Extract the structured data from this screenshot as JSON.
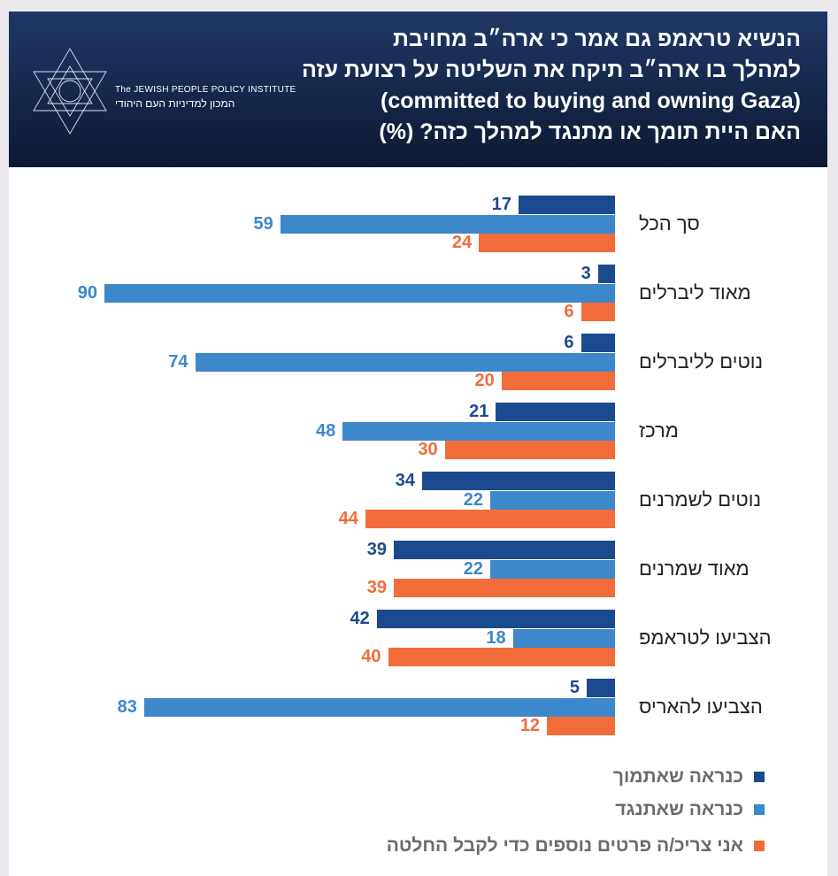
{
  "header": {
    "title_lines": [
      "הנשיא טראמפ גם אמר כי ארה״ב מחויבת",
      "למהלך בו ארה״ב תיקח את השליטה על רצועת עזה",
      "(committed to buying and owning Gaza)",
      "האם היית תומך או מתנגד למהלך כזה? (%)"
    ],
    "logo_en": "The JEWISH PEOPLE POLICY INSTITUTE",
    "logo_he": "המכון למדיניות העם היהודי"
  },
  "chart_data": {
    "type": "bar",
    "orientation": "horizontal",
    "unit": "%",
    "categories": [
      "סך הכל",
      "מאוד ליברלים",
      "נוטים לליברלים",
      "מרכז",
      "נוטים לשמרנים",
      "מאוד שמרנים",
      "הצביעו לטראמפ",
      "הצביעו להאריס"
    ],
    "series": [
      {
        "name": "כנראה שאתמוך",
        "color": "#1b4a8e",
        "values": [
          17,
          3,
          6,
          21,
          34,
          39,
          42,
          5
        ]
      },
      {
        "name": "כנראה שאתנגד",
        "color": "#3d87cb",
        "values": [
          59,
          90,
          74,
          48,
          22,
          22,
          18,
          83
        ]
      },
      {
        "name": "אני צריכ/ה פרטים נוספים כדי לקבל החלטה",
        "color": "#f26c3a",
        "values": [
          24,
          6,
          20,
          30,
          44,
          39,
          40,
          12
        ]
      }
    ],
    "legend": "bottom-right",
    "grid": false
  }
}
